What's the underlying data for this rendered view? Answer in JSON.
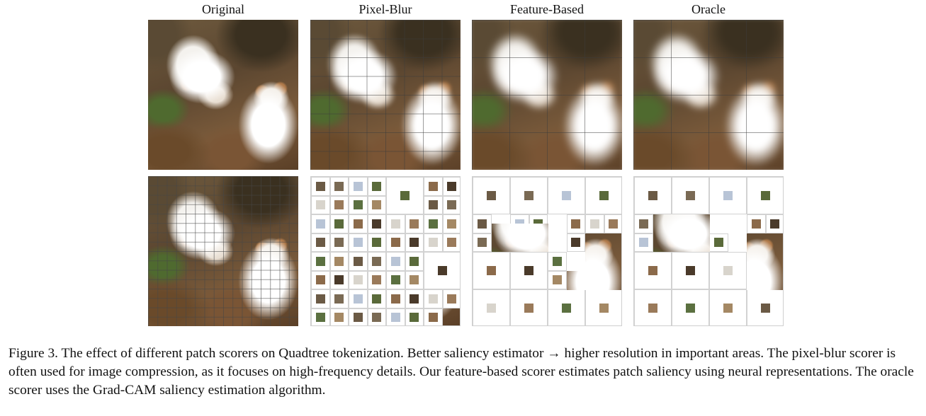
{
  "columns": [
    "Original",
    "Pixel-Blur",
    "Feature-Based",
    "Oracle"
  ],
  "caption": {
    "label": "Figure 3.",
    "text": "The effect of different patch scorers on Quadtree tokenization. Better saliency estimator → higher resolution in important areas. The pixel-blur scorer is often used for image compression, as it focuses on high-frequency details. Our feature-based scorer estimates patch saliency using neural representations. The oracle scorer uses the Grad-CAM saliency estimation algorithm."
  },
  "thumb_colors": [
    "#6b5a45",
    "#7a6a54",
    "#b8c4d6",
    "#5a6a3a",
    "#8b6a4a",
    "#4a3a2a",
    "#d8d4cc",
    "#9a7a5a",
    "#5b7040",
    "#a48864"
  ]
}
